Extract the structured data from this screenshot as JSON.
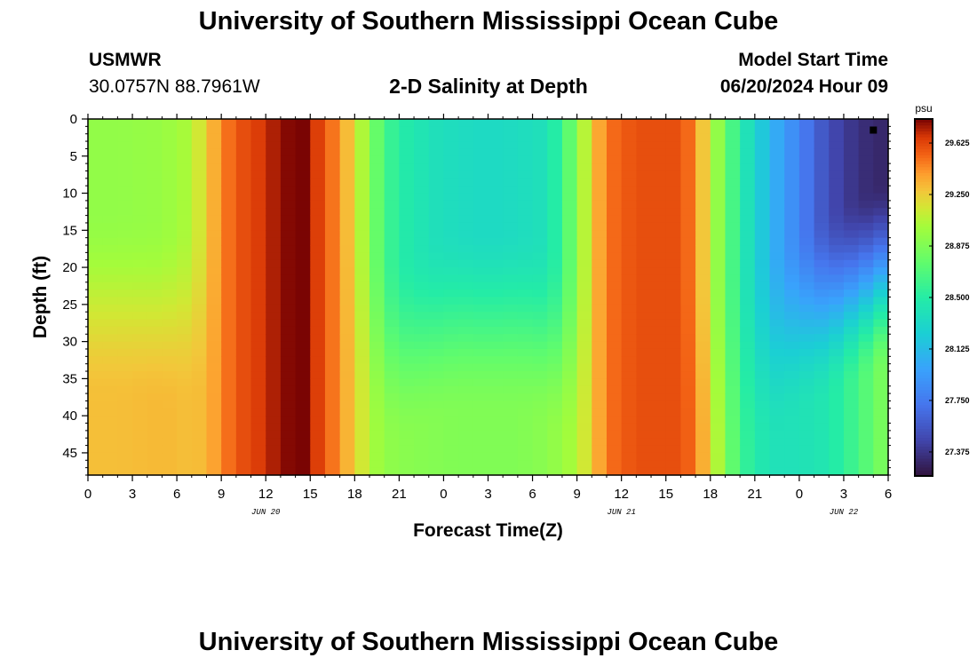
{
  "header": {
    "title": "University of Southern Mississippi Ocean Cube",
    "station": "USMWR",
    "coordinates": "30.0757N  88.7961W",
    "subtitle": "2-D Salinity at Depth",
    "model_start_label": "Model Start Time",
    "model_start_time": "06/20/2024 Hour 09"
  },
  "footer": {
    "title": "University of Southern Mississippi Ocean Cube"
  },
  "chart_data": {
    "type": "heatmap",
    "title": "2-D Salinity at Depth",
    "xlabel": "Forecast Time(Z)",
    "ylabel": "Depth (ft)",
    "x_tick_labels": [
      "0",
      "3",
      "6",
      "9",
      "12",
      "15",
      "18",
      "21",
      "0",
      "3",
      "6",
      "9",
      "12",
      "15",
      "18",
      "21",
      "0",
      "3",
      "6"
    ],
    "x_date_labels": [
      {
        "label": "JUN 20",
        "hour": 12
      },
      {
        "label": "JUN 21",
        "hour": 36
      },
      {
        "label": "JUN 22",
        "hour": 51
      }
    ],
    "x_range_hours": [
      0,
      54
    ],
    "x_origin": "2024-06-20 00Z",
    "y_tick_labels": [
      "0",
      "5",
      "10",
      "15",
      "20",
      "25",
      "30",
      "35",
      "40",
      "45"
    ],
    "y_range": [
      0,
      48
    ],
    "y_inverted": true,
    "colorbar": {
      "unit": "psu",
      "range": [
        27.2,
        29.8
      ],
      "ticks": [
        "29.625",
        "29.250",
        "28.875",
        "28.500",
        "28.125",
        "27.750",
        "27.375"
      ],
      "colormap": "turbo"
    },
    "marker": {
      "hour": 53,
      "depth": 1.5
    },
    "profiles": [
      {
        "hour": 0,
        "surface": 28.95,
        "bottom": 29.3,
        "transition_depth": 34
      },
      {
        "hour": 2,
        "surface": 28.95,
        "bottom": 29.3,
        "transition_depth": 34
      },
      {
        "hour": 5,
        "surface": 28.97,
        "bottom": 29.32,
        "transition_depth": 35
      },
      {
        "hour": 7,
        "surface": 29.05,
        "bottom": 29.3,
        "transition_depth": 35
      },
      {
        "hour": 8,
        "surface": 29.25,
        "bottom": 29.32,
        "transition_depth": 35
      },
      {
        "hour": 9,
        "surface": 29.45,
        "bottom": 29.45,
        "transition_depth": 35
      },
      {
        "hour": 10,
        "surface": 29.58,
        "bottom": 29.58,
        "transition_depth": 35
      },
      {
        "hour": 12,
        "surface": 29.68,
        "bottom": 29.68,
        "transition_depth": 35
      },
      {
        "hour": 13,
        "surface": 29.78,
        "bottom": 29.78,
        "transition_depth": 35
      },
      {
        "hour": 14.5,
        "surface": 29.8,
        "bottom": 29.8,
        "transition_depth": 35
      },
      {
        "hour": 15,
        "surface": 29.72,
        "bottom": 29.72,
        "transition_depth": 35
      },
      {
        "hour": 16,
        "surface": 29.58,
        "bottom": 29.58,
        "transition_depth": 35
      },
      {
        "hour": 17,
        "surface": 29.42,
        "bottom": 29.42,
        "transition_depth": 35
      },
      {
        "hour": 18,
        "surface": 29.2,
        "bottom": 29.25,
        "transition_depth": 35
      },
      {
        "hour": 19,
        "surface": 28.9,
        "bottom": 29.05,
        "transition_depth": 38
      },
      {
        "hour": 20,
        "surface": 28.65,
        "bottom": 28.95,
        "transition_depth": 40
      },
      {
        "hour": 21,
        "surface": 28.5,
        "bottom": 28.92,
        "transition_depth": 40
      },
      {
        "hour": 23,
        "surface": 28.4,
        "bottom": 28.9,
        "transition_depth": 38
      },
      {
        "hour": 25,
        "surface": 28.35,
        "bottom": 28.88,
        "transition_depth": 36
      },
      {
        "hour": 27,
        "surface": 28.33,
        "bottom": 28.88,
        "transition_depth": 36
      },
      {
        "hour": 29,
        "surface": 28.35,
        "bottom": 28.88,
        "transition_depth": 36
      },
      {
        "hour": 31,
        "surface": 28.4,
        "bottom": 28.92,
        "transition_depth": 38
      },
      {
        "hour": 32,
        "surface": 28.6,
        "bottom": 28.98,
        "transition_depth": 40
      },
      {
        "hour": 33,
        "surface": 28.9,
        "bottom": 29.05,
        "transition_depth": 40
      },
      {
        "hour": 34,
        "surface": 29.25,
        "bottom": 29.25,
        "transition_depth": 40
      },
      {
        "hour": 35,
        "surface": 29.5,
        "bottom": 29.5,
        "transition_depth": 40
      },
      {
        "hour": 37,
        "surface": 29.6,
        "bottom": 29.6,
        "transition_depth": 40
      },
      {
        "hour": 40,
        "surface": 29.6,
        "bottom": 29.6,
        "transition_depth": 40
      },
      {
        "hour": 41,
        "surface": 29.45,
        "bottom": 29.5,
        "transition_depth": 40
      },
      {
        "hour": 42,
        "surface": 29.1,
        "bottom": 29.2,
        "transition_depth": 42
      },
      {
        "hour": 43,
        "surface": 28.8,
        "bottom": 28.9,
        "transition_depth": 42
      },
      {
        "hour": 44,
        "surface": 28.5,
        "bottom": 28.6,
        "transition_depth": 42
      },
      {
        "hour": 46,
        "surface": 28.1,
        "bottom": 28.4,
        "transition_depth": 40
      },
      {
        "hour": 48,
        "surface": 27.8,
        "bottom": 28.4,
        "transition_depth": 36
      },
      {
        "hour": 50,
        "surface": 27.5,
        "bottom": 28.45,
        "transition_depth": 34
      },
      {
        "hour": 52,
        "surface": 27.35,
        "bottom": 28.65,
        "transition_depth": 32
      },
      {
        "hour": 54,
        "surface": 27.3,
        "bottom": 28.9,
        "transition_depth": 30
      }
    ]
  }
}
